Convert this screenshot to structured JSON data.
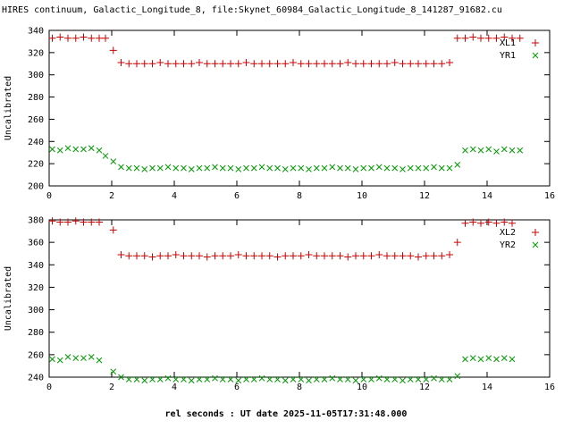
{
  "title": "HIRES continuum, Galactic_Longitude_8, file:Skynet_60984_Galactic_Longitude_8_141287_91682.cu",
  "xlabel": "rel seconds : UT date 2025-11-05T17:31:48.000",
  "colors": {
    "series_red": "#cc0000",
    "series_green": "#009900",
    "axis": "#000000",
    "background": "#ffffff"
  },
  "chart_data": [
    {
      "type": "scatter",
      "title": "",
      "ylabel": "Uncalibrated",
      "xlabel": "",
      "ylim": [
        200,
        340
      ],
      "ytick": 20,
      "xlim": [
        0,
        16
      ],
      "xtick": 2,
      "grid": false,
      "legend_position": "top-right",
      "series": [
        {
          "name": "XL1",
          "marker": "plus",
          "color": "#cc0000",
          "points": [
            [
              0.1,
              333
            ],
            [
              0.35,
              334
            ],
            [
              0.6,
              333
            ],
            [
              0.85,
              333
            ],
            [
              1.1,
              334
            ],
            [
              1.35,
              333
            ],
            [
              1.6,
              333
            ],
            [
              1.8,
              333
            ],
            [
              2.05,
              322
            ],
            [
              2.3,
              311
            ],
            [
              2.55,
              310
            ],
            [
              2.8,
              310
            ],
            [
              3.05,
              310
            ],
            [
              3.3,
              310
            ],
            [
              3.55,
              311
            ],
            [
              3.8,
              310
            ],
            [
              4.05,
              310
            ],
            [
              4.3,
              310
            ],
            [
              4.55,
              310
            ],
            [
              4.8,
              311
            ],
            [
              5.05,
              310
            ],
            [
              5.3,
              310
            ],
            [
              5.55,
              310
            ],
            [
              5.8,
              310
            ],
            [
              6.05,
              310
            ],
            [
              6.3,
              311
            ],
            [
              6.55,
              310
            ],
            [
              6.8,
              310
            ],
            [
              7.05,
              310
            ],
            [
              7.3,
              310
            ],
            [
              7.55,
              310
            ],
            [
              7.8,
              311
            ],
            [
              8.05,
              310
            ],
            [
              8.3,
              310
            ],
            [
              8.55,
              310
            ],
            [
              8.8,
              310
            ],
            [
              9.05,
              310
            ],
            [
              9.3,
              310
            ],
            [
              9.55,
              311
            ],
            [
              9.8,
              310
            ],
            [
              10.05,
              310
            ],
            [
              10.3,
              310
            ],
            [
              10.55,
              310
            ],
            [
              10.8,
              310
            ],
            [
              11.05,
              311
            ],
            [
              11.3,
              310
            ],
            [
              11.55,
              310
            ],
            [
              11.8,
              310
            ],
            [
              12.05,
              310
            ],
            [
              12.3,
              310
            ],
            [
              12.55,
              310
            ],
            [
              12.8,
              311
            ],
            [
              13.05,
              333
            ],
            [
              13.3,
              333
            ],
            [
              13.55,
              334
            ],
            [
              13.8,
              333
            ],
            [
              14.05,
              333
            ],
            [
              14.3,
              333
            ],
            [
              14.55,
              334
            ],
            [
              14.8,
              333
            ],
            [
              15.05,
              333
            ]
          ]
        },
        {
          "name": "YR1",
          "marker": "cross",
          "color": "#009900",
          "points": [
            [
              0.1,
              233
            ],
            [
              0.35,
              232
            ],
            [
              0.6,
              234
            ],
            [
              0.85,
              233
            ],
            [
              1.1,
              233
            ],
            [
              1.35,
              234
            ],
            [
              1.6,
              232
            ],
            [
              1.8,
              227
            ],
            [
              2.05,
              222
            ],
            [
              2.3,
              217
            ],
            [
              2.55,
              216
            ],
            [
              2.8,
              216
            ],
            [
              3.05,
              215
            ],
            [
              3.3,
              216
            ],
            [
              3.55,
              216
            ],
            [
              3.8,
              217
            ],
            [
              4.05,
              216
            ],
            [
              4.3,
              216
            ],
            [
              4.55,
              215
            ],
            [
              4.8,
              216
            ],
            [
              5.05,
              216
            ],
            [
              5.3,
              217
            ],
            [
              5.55,
              216
            ],
            [
              5.8,
              216
            ],
            [
              6.05,
              215
            ],
            [
              6.3,
              216
            ],
            [
              6.55,
              216
            ],
            [
              6.8,
              217
            ],
            [
              7.05,
              216
            ],
            [
              7.3,
              216
            ],
            [
              7.55,
              215
            ],
            [
              7.8,
              216
            ],
            [
              8.05,
              216
            ],
            [
              8.3,
              215
            ],
            [
              8.55,
              216
            ],
            [
              8.8,
              216
            ],
            [
              9.05,
              217
            ],
            [
              9.3,
              216
            ],
            [
              9.55,
              216
            ],
            [
              9.8,
              215
            ],
            [
              10.05,
              216
            ],
            [
              10.3,
              216
            ],
            [
              10.55,
              217
            ],
            [
              10.8,
              216
            ],
            [
              11.05,
              216
            ],
            [
              11.3,
              215
            ],
            [
              11.55,
              216
            ],
            [
              11.8,
              216
            ],
            [
              12.05,
              216
            ],
            [
              12.3,
              217
            ],
            [
              12.55,
              216
            ],
            [
              12.8,
              216
            ],
            [
              13.05,
              219
            ],
            [
              13.3,
              232
            ],
            [
              13.55,
              233
            ],
            [
              13.8,
              232
            ],
            [
              14.05,
              233
            ],
            [
              14.3,
              231
            ],
            [
              14.55,
              233
            ],
            [
              14.8,
              232
            ],
            [
              15.05,
              232
            ]
          ]
        }
      ]
    },
    {
      "type": "scatter",
      "title": "",
      "ylabel": "Uncalibrated",
      "xlabel": "rel seconds : UT date 2025-11-05T17:31:48.000",
      "ylim": [
        240,
        380
      ],
      "ytick": 20,
      "xlim": [
        0,
        16
      ],
      "xtick": 2,
      "grid": false,
      "legend_position": "top-right",
      "series": [
        {
          "name": "XL2",
          "marker": "plus",
          "color": "#cc0000",
          "points": [
            [
              0.1,
              379
            ],
            [
              0.35,
              378
            ],
            [
              0.6,
              378
            ],
            [
              0.85,
              379
            ],
            [
              1.1,
              378
            ],
            [
              1.35,
              378
            ],
            [
              1.6,
              378
            ],
            [
              2.05,
              371
            ],
            [
              2.3,
              349
            ],
            [
              2.55,
              348
            ],
            [
              2.8,
              348
            ],
            [
              3.05,
              348
            ],
            [
              3.3,
              347
            ],
            [
              3.55,
              348
            ],
            [
              3.8,
              348
            ],
            [
              4.05,
              349
            ],
            [
              4.3,
              348
            ],
            [
              4.55,
              348
            ],
            [
              4.8,
              348
            ],
            [
              5.05,
              347
            ],
            [
              5.3,
              348
            ],
            [
              5.55,
              348
            ],
            [
              5.8,
              348
            ],
            [
              6.05,
              349
            ],
            [
              6.3,
              348
            ],
            [
              6.55,
              348
            ],
            [
              6.8,
              348
            ],
            [
              7.05,
              348
            ],
            [
              7.3,
              347
            ],
            [
              7.55,
              348
            ],
            [
              7.8,
              348
            ],
            [
              8.05,
              348
            ],
            [
              8.3,
              349
            ],
            [
              8.55,
              348
            ],
            [
              8.8,
              348
            ],
            [
              9.05,
              348
            ],
            [
              9.3,
              348
            ],
            [
              9.55,
              347
            ],
            [
              9.8,
              348
            ],
            [
              10.05,
              348
            ],
            [
              10.3,
              348
            ],
            [
              10.55,
              349
            ],
            [
              10.8,
              348
            ],
            [
              11.05,
              348
            ],
            [
              11.3,
              348
            ],
            [
              11.55,
              348
            ],
            [
              11.8,
              347
            ],
            [
              12.05,
              348
            ],
            [
              12.3,
              348
            ],
            [
              12.55,
              348
            ],
            [
              12.8,
              349
            ],
            [
              13.05,
              360
            ],
            [
              13.3,
              377
            ],
            [
              13.55,
              378
            ],
            [
              13.8,
              377
            ],
            [
              14.05,
              378
            ],
            [
              14.3,
              377
            ],
            [
              14.55,
              378
            ],
            [
              14.8,
              377
            ]
          ]
        },
        {
          "name": "YR2",
          "marker": "cross",
          "color": "#009900",
          "points": [
            [
              0.1,
              256
            ],
            [
              0.35,
              255
            ],
            [
              0.6,
              258
            ],
            [
              0.85,
              257
            ],
            [
              1.1,
              257
            ],
            [
              1.35,
              258
            ],
            [
              1.6,
              255
            ],
            [
              2.05,
              245
            ],
            [
              2.3,
              240
            ],
            [
              2.55,
              238
            ],
            [
              2.8,
              238
            ],
            [
              3.05,
              237
            ],
            [
              3.3,
              238
            ],
            [
              3.55,
              238
            ],
            [
              3.8,
              239
            ],
            [
              4.05,
              238
            ],
            [
              4.3,
              238
            ],
            [
              4.55,
              237
            ],
            [
              4.8,
              238
            ],
            [
              5.05,
              238
            ],
            [
              5.3,
              239
            ],
            [
              5.55,
              238
            ],
            [
              5.8,
              238
            ],
            [
              6.05,
              237
            ],
            [
              6.3,
              238
            ],
            [
              6.55,
              238
            ],
            [
              6.8,
              239
            ],
            [
              7.05,
              238
            ],
            [
              7.3,
              238
            ],
            [
              7.55,
              237
            ],
            [
              7.8,
              238
            ],
            [
              8.05,
              238
            ],
            [
              8.3,
              237
            ],
            [
              8.55,
              238
            ],
            [
              8.8,
              238
            ],
            [
              9.05,
              239
            ],
            [
              9.3,
              238
            ],
            [
              9.55,
              238
            ],
            [
              9.8,
              237
            ],
            [
              10.05,
              238
            ],
            [
              10.3,
              238
            ],
            [
              10.55,
              239
            ],
            [
              10.8,
              238
            ],
            [
              11.05,
              238
            ],
            [
              11.3,
              237
            ],
            [
              11.55,
              238
            ],
            [
              11.8,
              238
            ],
            [
              12.05,
              238
            ],
            [
              12.3,
              239
            ],
            [
              12.55,
              238
            ],
            [
              12.8,
              238
            ],
            [
              13.05,
              241
            ],
            [
              13.3,
              256
            ],
            [
              13.55,
              257
            ],
            [
              13.8,
              256
            ],
            [
              14.05,
              257
            ],
            [
              14.3,
              256
            ],
            [
              14.55,
              257
            ],
            [
              14.8,
              256
            ]
          ]
        }
      ]
    }
  ]
}
